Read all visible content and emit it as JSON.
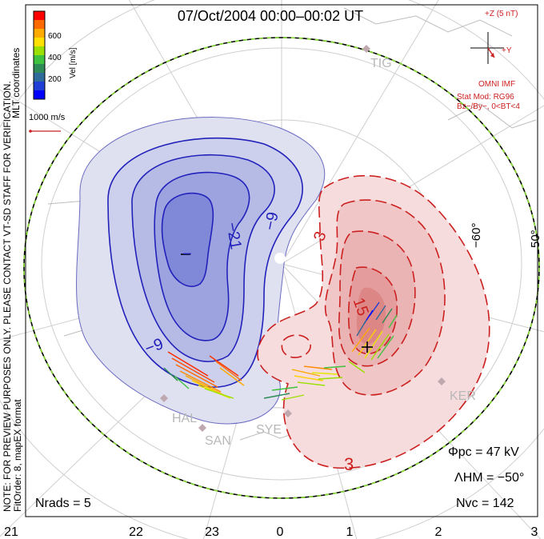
{
  "title": "07/Oct/2004  00:00–00:02  UT",
  "colorbar": {
    "unit_label": "Vel [m/s]",
    "ticks": [
      "600",
      "400",
      "200"
    ],
    "colors": [
      "#ff0000",
      "#ff6a00",
      "#ffaa00",
      "#ffe000",
      "#9be000",
      "#3fc23f",
      "#2e8b57",
      "#2e6b9a",
      "#1f3fd6",
      "#0000ff"
    ]
  },
  "coordinates_label": "MLT coordinates",
  "scale_label": "1000 m/s",
  "notice": "NOTE: FOR PREVIEW PURPOSES ONLY. PLEASE CONTACT VT-SD STAFF FOR VERIFICATION.",
  "fit_info": "FitOrder: 8, mapEX format",
  "imf": {
    "z_label": "+Z (5 nT)",
    "y_label": "+Y",
    "source": "OMNI IMF",
    "model_line1": "Stat Mod: RG96",
    "model_line2": "Bz−/By−, 0<BT<4"
  },
  "contour_labels": {
    "neg_inner": "−9",
    "neg_mid": "−21",
    "neg_min": "−",
    "neg_outer": "−9",
    "pos_inner": "3",
    "pos_mid": "15",
    "pos_outer": "3"
  },
  "latitude_labels": [
    "−60°",
    "50°"
  ],
  "stations": [
    "TIG",
    "HAL",
    "SAN",
    "SYE",
    "KER"
  ],
  "stats": {
    "phi_pc": "Φpc  =  47 kV",
    "lambda_hm": "ΛHM  =  −50°",
    "n_vc": "Nvc  =  142",
    "n_rads": "Nrads  =  5"
  },
  "mlt_axis": [
    "21",
    "22",
    "23",
    "0",
    "1",
    "2",
    "3"
  ],
  "colors": {
    "negative_cell": "#2222bb",
    "positive_cell": "#cc2020",
    "boundary": "#000000",
    "boundary_dash": "#88dd33"
  }
}
